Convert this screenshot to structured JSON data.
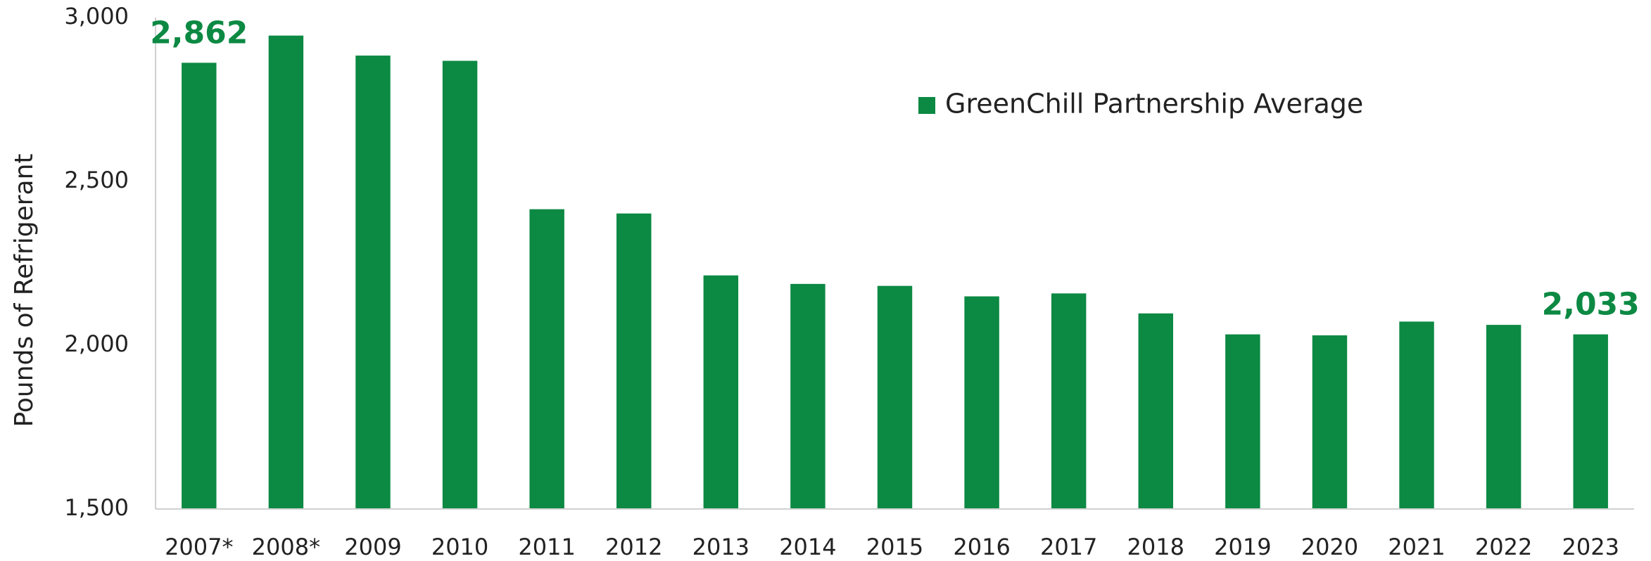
{
  "chart_data": {
    "type": "bar",
    "y_label": "Pounds of Refrigerant",
    "categories": [
      "2007*",
      "2008*",
      "2009",
      "2010",
      "2011",
      "2012",
      "2013",
      "2014",
      "2015",
      "2016",
      "2017",
      "2018",
      "2019",
      "2020",
      "2021",
      "2022",
      "2023"
    ],
    "series": [
      {
        "name": "GreenChill Partnership Average",
        "color": "#0c8943",
        "values": [
          2862,
          2945,
          2884,
          2868,
          2415,
          2402,
          2213,
          2187,
          2181,
          2149,
          2158,
          2097,
          2033,
          2030,
          2072,
          2062,
          2033
        ],
        "value_labels": [
          "2,862",
          null,
          null,
          null,
          null,
          null,
          null,
          null,
          null,
          null,
          null,
          null,
          null,
          null,
          null,
          null,
          "2,033"
        ]
      }
    ],
    "ylim": [
      1500,
      3000
    ],
    "yticks": [
      {
        "value": 1500,
        "label": "1,500"
      },
      {
        "value": 2000,
        "label": "2,000"
      },
      {
        "value": 2500,
        "label": "2,500"
      },
      {
        "value": 3000,
        "label": "3,000"
      }
    ],
    "grid": false,
    "legend": "top-right"
  }
}
